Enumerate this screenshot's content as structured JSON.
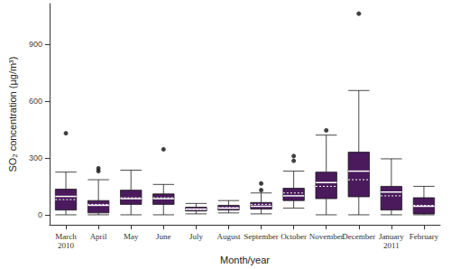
{
  "chart_data": {
    "type": "boxplot",
    "x_label": "Month/year",
    "y_label": "SO₂ concentration (µg/m³)",
    "categories": [
      "March\n2010",
      "April",
      "May",
      "June",
      "July",
      "August",
      "September",
      "October",
      "November",
      "December",
      "January\n2011",
      "February"
    ],
    "boxes": [
      {
        "min": 0,
        "q1": 25,
        "median": 97,
        "q3": 135,
        "max": 225,
        "mean": 80
      },
      {
        "min": 0,
        "q1": 10,
        "median": 50,
        "q3": 75,
        "max": 185,
        "mean": 55
      },
      {
        "min": 0,
        "q1": 55,
        "median": 85,
        "q3": 130,
        "max": 235,
        "mean": 90
      },
      {
        "min": 0,
        "q1": 55,
        "median": 85,
        "q3": 110,
        "max": 160,
        "mean": 90
      },
      {
        "min": 5,
        "q1": 20,
        "median": 30,
        "q3": 40,
        "max": 60,
        "mean": 28
      },
      {
        "min": 10,
        "q1": 25,
        "median": 35,
        "q3": 50,
        "max": 75,
        "mean": 38
      },
      {
        "min": 5,
        "q1": 30,
        "median": 45,
        "q3": 65,
        "max": 115,
        "mean": 55
      },
      {
        "min": 35,
        "q1": 75,
        "median": 100,
        "q3": 140,
        "max": 230,
        "mean": 115
      },
      {
        "min": 0,
        "q1": 85,
        "median": 170,
        "q3": 225,
        "max": 420,
        "mean": 150
      },
      {
        "min": 0,
        "q1": 95,
        "median": 230,
        "q3": 330,
        "max": 655,
        "mean": 185
      },
      {
        "min": 0,
        "q1": 25,
        "median": 120,
        "q3": 150,
        "max": 295,
        "mean": 100
      },
      {
        "min": 0,
        "q1": 5,
        "median": 45,
        "q3": 90,
        "max": 150,
        "mean": 50
      }
    ],
    "outliers": [
      [
        430
      ],
      [
        230,
        245
      ],
      [],
      [
        345
      ],
      [],
      [],
      [
        130,
        165
      ],
      [
        285,
        310
      ],
      [
        445
      ],
      [
        1060
      ],
      [],
      []
    ],
    "color": "#4a1a5c",
    "ylim": [
      -53,
      1113
    ],
    "yticks": [
      0,
      300,
      600,
      900
    ],
    "grid": false
  }
}
